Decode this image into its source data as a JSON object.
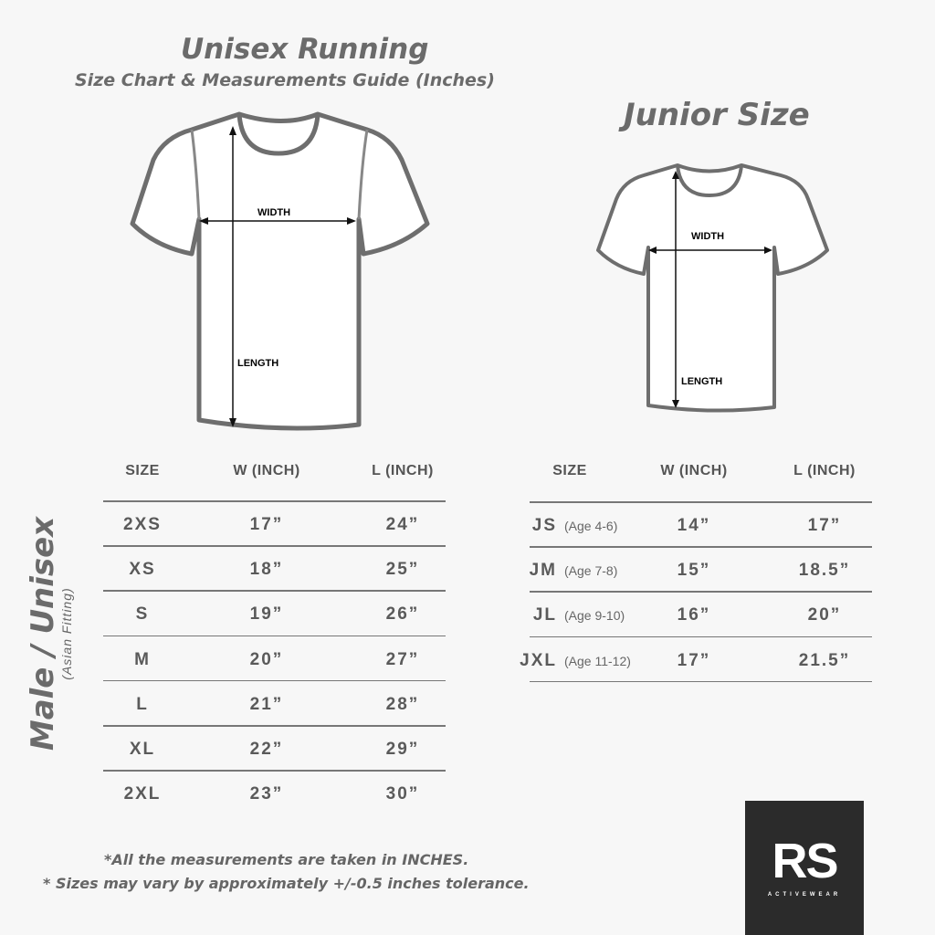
{
  "header": {
    "title": "Unisex Running",
    "subtitle": "Size Chart & Measurements Guide (Inches)",
    "junior_title": "Junior Size"
  },
  "diagram_labels": {
    "width": "WIDTH",
    "length": "LENGTH"
  },
  "side_label": {
    "main": "Male / Unisex",
    "sub": "(Asian Fitting)"
  },
  "adult_table": {
    "headers": [
      "SIZE",
      "W (INCH)",
      "L (INCH)"
    ],
    "rows": [
      {
        "size": "2XS",
        "w": "17”",
        "l": "24”"
      },
      {
        "size": "XS",
        "w": "18”",
        "l": "25”"
      },
      {
        "size": "S",
        "w": "19”",
        "l": "26”"
      },
      {
        "size": "M",
        "w": "20”",
        "l": "27”"
      },
      {
        "size": "L",
        "w": "21”",
        "l": "28”"
      },
      {
        "size": "XL",
        "w": "22”",
        "l": "29”"
      },
      {
        "size": "2XL",
        "w": "23”",
        "l": "30”"
      }
    ]
  },
  "junior_table": {
    "headers": [
      "SIZE",
      "W (INCH)",
      "L (INCH)"
    ],
    "rows": [
      {
        "size": "JS",
        "age": "(Age 4-6)",
        "w": "14”",
        "l": "17”"
      },
      {
        "size": "JM",
        "age": "(Age 7-8)",
        "w": "15”",
        "l": "18.5”"
      },
      {
        "size": "JL",
        "age": "(Age 9-10)",
        "w": "16”",
        "l": "20”"
      },
      {
        "size": "JXL",
        "age": "(Age 11-12)",
        "w": "17”",
        "l": "21.5”"
      }
    ]
  },
  "notes": [
    "*All the measurements are taken in INCHES.",
    "* Sizes may vary by approximately +/-0.5 inches tolerance."
  ],
  "logo": {
    "text": "RS",
    "tagline": "ACTIVEWEAR",
    "background": "#2b2b2b"
  },
  "colors": {
    "title": "#6b6b6b",
    "text": "#555555",
    "background": "#f7f7f7"
  }
}
